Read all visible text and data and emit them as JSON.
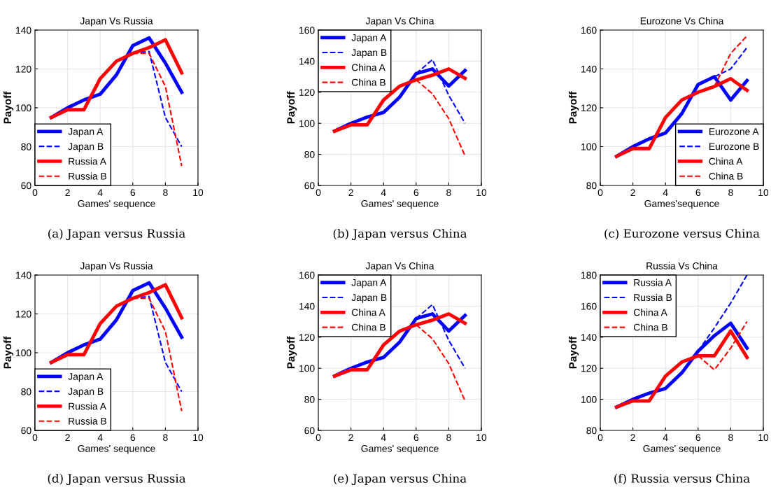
{
  "chart_data": [
    {
      "type": "line",
      "title": "Japan Vs Russia",
      "xlabel": "Games' sequence",
      "ylabel": "Payoff",
      "xlim": [
        0,
        10
      ],
      "xticks": [
        0,
        2,
        4,
        6,
        8,
        10
      ],
      "ylim": [
        60,
        140
      ],
      "yticks": [
        60,
        80,
        100,
        120,
        140
      ],
      "grid": true,
      "legend": "bottom left",
      "annotations": [
        "(a) Japan versus Russia"
      ],
      "series": [
        {
          "name": "Japan A",
          "color": "#0000ff",
          "line_style": "solid",
          "x": [
            1,
            2,
            3,
            4,
            5,
            6,
            7,
            8,
            9
          ],
          "values": [
            95,
            100,
            104,
            107,
            117,
            132,
            136,
            123,
            108
          ]
        },
        {
          "name": "Japan B",
          "color": "#0000ff",
          "line_style": "dashed",
          "x": [
            6,
            7,
            8,
            9
          ],
          "values": [
            128,
            129,
            95,
            80
          ]
        },
        {
          "name": "Russia A",
          "color": "#ff0000",
          "line_style": "solid",
          "x": [
            1,
            2,
            3,
            4,
            5,
            6,
            7,
            8,
            9
          ],
          "values": [
            95,
            99,
            99,
            115,
            124,
            128,
            131,
            135,
            118
          ]
        },
        {
          "name": "Russia B",
          "color": "#ff0000",
          "line_style": "dashed",
          "x": [
            6,
            7,
            8,
            9
          ],
          "values": [
            128,
            128,
            111,
            70
          ]
        }
      ]
    },
    {
      "type": "line",
      "title": "Japan Vs China",
      "xlabel": "Games' sequence",
      "ylabel": "Payoff",
      "xlim": [
        0,
        10
      ],
      "xticks": [
        0,
        2,
        4,
        6,
        8,
        10
      ],
      "ylim": [
        60,
        160
      ],
      "yticks": [
        60,
        80,
        100,
        120,
        140,
        160
      ],
      "grid": true,
      "legend": "top left",
      "annotations": [
        "(b) Japan versus China"
      ],
      "series": [
        {
          "name": "Japan A",
          "color": "#0000ff",
          "line_style": "solid",
          "x": [
            1,
            2,
            3,
            4,
            5,
            6,
            7,
            8,
            9
          ],
          "values": [
            95,
            100,
            104,
            107,
            117,
            132,
            135,
            124,
            134
          ]
        },
        {
          "name": "Japan B",
          "color": "#0000ff",
          "line_style": "dashed",
          "x": [
            6,
            7,
            8,
            9
          ],
          "values": [
            132,
            141,
            118,
            100
          ]
        },
        {
          "name": "China A",
          "color": "#ff0000",
          "line_style": "solid",
          "x": [
            1,
            2,
            3,
            4,
            5,
            6,
            7,
            8,
            9
          ],
          "values": [
            95,
            99,
            99,
            115,
            124,
            128,
            131,
            135,
            129
          ]
        },
        {
          "name": "China B",
          "color": "#ff0000",
          "line_style": "dashed",
          "x": [
            6,
            7,
            8,
            9
          ],
          "values": [
            128,
            119,
            103,
            79
          ]
        }
      ]
    },
    {
      "type": "line",
      "title": "Eurozone Vs China",
      "xlabel": "Games'sequence",
      "ylabel": "Payoff",
      "xlim": [
        0,
        10
      ],
      "xticks": [
        0,
        2,
        4,
        6,
        8,
        10
      ],
      "ylim": [
        80,
        160
      ],
      "yticks": [
        80,
        100,
        120,
        140,
        160
      ],
      "grid": true,
      "legend": "bottom right",
      "annotations": [
        "(c) Eurozone versus China"
      ],
      "series": [
        {
          "name": "Eurozone A",
          "color": "#0000ff",
          "line_style": "solid",
          "x": [
            1,
            2,
            3,
            4,
            5,
            6,
            7,
            8,
            9
          ],
          "values": [
            95,
            100,
            104,
            107,
            117,
            132,
            136,
            124,
            134
          ]
        },
        {
          "name": "Eurozone B",
          "color": "#0000ff",
          "line_style": "dashed",
          "x": [
            7,
            8,
            9
          ],
          "values": [
            136,
            140,
            151
          ]
        },
        {
          "name": "China A",
          "color": "#ff0000",
          "line_style": "solid",
          "x": [
            1,
            2,
            3,
            4,
            5,
            6,
            7,
            8,
            9
          ],
          "values": [
            95,
            99,
            99,
            115,
            124,
            128,
            131,
            135,
            129
          ]
        },
        {
          "name": "China B",
          "color": "#ff0000",
          "line_style": "dashed",
          "x": [
            7,
            8,
            9
          ],
          "values": [
            131,
            148,
            157
          ]
        }
      ]
    },
    {
      "type": "line",
      "title": "Japan Vs Russia",
      "xlabel": "Games' sequence",
      "ylabel": "Payoff",
      "xlim": [
        0,
        10
      ],
      "xticks": [
        0,
        2,
        4,
        6,
        8,
        10
      ],
      "ylim": [
        60,
        140
      ],
      "yticks": [
        60,
        80,
        100,
        120,
        140
      ],
      "grid": true,
      "legend": "bottom left",
      "annotations": [
        "(d) Japan versus Russia"
      ],
      "series": [
        {
          "name": "Japan A",
          "color": "#0000ff",
          "line_style": "solid",
          "x": [
            1,
            2,
            3,
            4,
            5,
            6,
            7,
            8,
            9
          ],
          "values": [
            95,
            100,
            104,
            107,
            117,
            132,
            136,
            123,
            108
          ]
        },
        {
          "name": "Japan B",
          "color": "#0000ff",
          "line_style": "dashed",
          "x": [
            6,
            7,
            8,
            9
          ],
          "values": [
            128,
            129,
            95,
            80
          ]
        },
        {
          "name": "Russia A",
          "color": "#ff0000",
          "line_style": "solid",
          "x": [
            1,
            2,
            3,
            4,
            5,
            6,
            7,
            8,
            9
          ],
          "values": [
            95,
            99,
            99,
            115,
            124,
            128,
            131,
            135,
            118
          ]
        },
        {
          "name": "Russia B",
          "color": "#ff0000",
          "line_style": "dashed",
          "x": [
            6,
            7,
            8,
            9
          ],
          "values": [
            128,
            128,
            111,
            70
          ]
        }
      ]
    },
    {
      "type": "line",
      "title": "Japan Vs China",
      "xlabel": "Games' sequence",
      "ylabel": "Payoff",
      "xlim": [
        0,
        10
      ],
      "xticks": [
        0,
        2,
        4,
        6,
        8,
        10
      ],
      "ylim": [
        60,
        160
      ],
      "yticks": [
        60,
        80,
        100,
        120,
        140,
        160
      ],
      "grid": true,
      "legend": "top left",
      "annotations": [
        "(e) Japan versus China"
      ],
      "series": [
        {
          "name": "Japan A",
          "color": "#0000ff",
          "line_style": "solid",
          "x": [
            1,
            2,
            3,
            4,
            5,
            6,
            7,
            8,
            9
          ],
          "values": [
            95,
            100,
            104,
            107,
            117,
            132,
            135,
            124,
            134
          ]
        },
        {
          "name": "Japan B",
          "color": "#0000ff",
          "line_style": "dashed",
          "x": [
            6,
            7,
            8,
            9
          ],
          "values": [
            132,
            141,
            118,
            100
          ]
        },
        {
          "name": "China A",
          "color": "#ff0000",
          "line_style": "solid",
          "x": [
            1,
            2,
            3,
            4,
            5,
            6,
            7,
            8,
            9
          ],
          "values": [
            95,
            99,
            99,
            115,
            124,
            128,
            131,
            135,
            129
          ]
        },
        {
          "name": "China B",
          "color": "#ff0000",
          "line_style": "dashed",
          "x": [
            6,
            7,
            8,
            9
          ],
          "values": [
            128,
            119,
            103,
            79
          ]
        }
      ]
    },
    {
      "type": "line",
      "title": "Russia Vs China",
      "xlabel": "Games' sequence",
      "ylabel": "Payoff",
      "xlim": [
        0,
        10
      ],
      "xticks": [
        0,
        2,
        4,
        6,
        8,
        10
      ],
      "ylim": [
        80,
        180
      ],
      "yticks": [
        80,
        100,
        120,
        140,
        160,
        180
      ],
      "grid": true,
      "legend": "top left",
      "annotations": [
        "(f) Russia versus China"
      ],
      "series": [
        {
          "name": "Russia A",
          "color": "#0000ff",
          "line_style": "solid",
          "x": [
            1,
            2,
            3,
            4,
            5,
            6,
            7,
            8,
            9
          ],
          "values": [
            95,
            100,
            104,
            107,
            117,
            131,
            141,
            149,
            133
          ]
        },
        {
          "name": "Russia B",
          "color": "#0000ff",
          "line_style": "dashed",
          "x": [
            6,
            7,
            8,
            9
          ],
          "values": [
            131,
            146,
            162,
            180
          ]
        },
        {
          "name": "China A",
          "color": "#ff0000",
          "line_style": "solid",
          "x": [
            1,
            2,
            3,
            4,
            5,
            6,
            7,
            8,
            9
          ],
          "values": [
            95,
            99,
            99,
            115,
            124,
            128,
            128,
            144,
            127
          ]
        },
        {
          "name": "China B",
          "color": "#ff0000",
          "line_style": "dashed",
          "x": [
            6,
            7,
            8,
            9
          ],
          "values": [
            128,
            119,
            133,
            150
          ]
        }
      ]
    }
  ]
}
